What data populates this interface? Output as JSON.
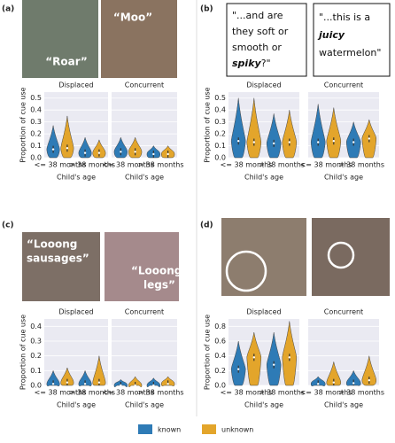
{
  "panels": [
    {
      "label": "(a)",
      "quotes": [
        "“Roar”",
        "“Moo”"
      ]
    },
    {
      "label": "(b)",
      "quotes": [
        [
          "\"...and are",
          "they soft or",
          "smooth or",
          "spiky",
          "?\""
        ],
        [
          "\"...this is a",
          "juicy",
          "watermelon\""
        ]
      ]
    },
    {
      "label": "(c)",
      "quotes": [
        [
          "“Looong",
          "sausages”"
        ],
        [
          "“Looong",
          "legs”"
        ]
      ]
    },
    {
      "label": "(d)"
    }
  ],
  "chart_data": [
    {
      "type": "violin",
      "title": "Displaced",
      "ylabel": "Proportion of cue use",
      "xlabel": "Child's age",
      "categories": [
        "<= 38 months",
        "> 38 months"
      ],
      "series": [
        {
          "name": "known",
          "color": "#2e7bb6",
          "values": [
            0.07,
            0.04
          ],
          "max": [
            0.27,
            0.17
          ]
        },
        {
          "name": "unknown",
          "color": "#e3a52b",
          "values": [
            0.08,
            0.04
          ],
          "max": [
            0.35,
            0.15
          ]
        }
      ],
      "ylim": [
        0,
        0.55
      ],
      "yticks": [
        {
          "value": 0,
          "label": "0.0"
        },
        0.1,
        0.2,
        0.3,
        0.4,
        0.5
      ]
    },
    {
      "type": "violin",
      "title": "Concurrent",
      "xlabel": "Child's age",
      "categories": [
        "<= 38 months",
        "> 38 months"
      ],
      "series": [
        {
          "name": "known",
          "color": "#2e7bb6",
          "values": [
            0.05,
            0.03
          ],
          "max": [
            0.17,
            0.1
          ]
        },
        {
          "name": "unknown",
          "color": "#e3a52b",
          "values": [
            0.05,
            0.03
          ],
          "max": [
            0.17,
            0.1
          ]
        }
      ],
      "ylim": [
        0,
        0.55
      ]
    },
    {
      "type": "violin",
      "title": "Displaced",
      "ylabel": "Proportion of cue use",
      "xlabel": "Child's age",
      "categories": [
        "<= 38 months",
        "> 38 months"
      ],
      "series": [
        {
          "name": "known",
          "color": "#2e7bb6",
          "values": [
            0.14,
            0.12
          ],
          "max": [
            0.5,
            0.37
          ]
        },
        {
          "name": "unknown",
          "color": "#e3a52b",
          "values": [
            0.13,
            0.13
          ],
          "max": [
            0.5,
            0.4
          ]
        }
      ],
      "ylim": [
        0,
        0.55
      ],
      "yticks": [
        {
          "value": 0,
          "label": "0.0"
        },
        0.1,
        0.2,
        0.3,
        0.4,
        0.5
      ]
    },
    {
      "type": "violin",
      "title": "Concurrent",
      "xlabel": "Child's age",
      "categories": [
        "<= 38 months",
        "> 38 months"
      ],
      "series": [
        {
          "name": "known",
          "color": "#2e7bb6",
          "values": [
            0.13,
            0.13
          ],
          "max": [
            0.45,
            0.3
          ]
        },
        {
          "name": "unknown",
          "color": "#e3a52b",
          "values": [
            0.14,
            0.16
          ],
          "max": [
            0.42,
            0.32
          ]
        }
      ],
      "ylim": [
        0,
        0.55
      ]
    },
    {
      "type": "violin",
      "title": "Displaced",
      "ylabel": "Proportion of cue use",
      "xlabel": "Child's age",
      "categories": [
        "<= 38 months",
        "> 38 months"
      ],
      "series": [
        {
          "name": "known",
          "color": "#2e7bb6",
          "values": [
            0.01,
            0.01
          ],
          "max": [
            0.1,
            0.1
          ]
        },
        {
          "name": "unknown",
          "color": "#e3a52b",
          "values": [
            0.02,
            0.02
          ],
          "max": [
            0.12,
            0.2
          ]
        }
      ],
      "ylim": [
        0,
        0.45
      ],
      "yticks": [
        {
          "value": 0,
          "label": "0.0"
        },
        0.1,
        0.2,
        0.3,
        0.4
      ]
    },
    {
      "type": "violin",
      "title": "Concurrent",
      "xlabel": "Child's age",
      "categories": [
        "<= 38 months",
        "> 38 months"
      ],
      "series": [
        {
          "name": "known",
          "color": "#2e7bb6",
          "values": [
            0,
            0
          ],
          "max": [
            0.04,
            0.05
          ]
        },
        {
          "name": "unknown",
          "color": "#e3a52b",
          "values": [
            0,
            0.01
          ],
          "max": [
            0.06,
            0.06
          ]
        }
      ],
      "ylim": [
        0,
        0.45
      ]
    },
    {
      "type": "violin",
      "title": "Displaced",
      "ylabel": "Proportion of cue use",
      "xlabel": "Child's age",
      "categories": [
        "<= 38 months",
        "> 38 months"
      ],
      "series": [
        {
          "name": "known",
          "color": "#2e7bb6",
          "values": [
            0.22,
            0.28
          ],
          "max": [
            0.6,
            0.72
          ]
        },
        {
          "name": "unknown",
          "color": "#e3a52b",
          "values": [
            0.38,
            0.38
          ],
          "max": [
            0.72,
            0.87
          ]
        }
      ],
      "ylim": [
        0,
        0.9
      ],
      "yticks": [
        {
          "value": 0,
          "label": "0.0"
        },
        0.2,
        0.4,
        0.6,
        0.8
      ]
    },
    {
      "type": "violin",
      "title": "Concurrent",
      "xlabel": "Child's age",
      "categories": [
        "<= 38 months",
        "> 38 months"
      ],
      "series": [
        {
          "name": "known",
          "color": "#2e7bb6",
          "values": [
            0.02,
            0.03
          ],
          "max": [
            0.12,
            0.2
          ]
        },
        {
          "name": "unknown",
          "color": "#e3a52b",
          "values": [
            0.04,
            0.07
          ],
          "max": [
            0.32,
            0.4
          ]
        }
      ],
      "ylim": [
        0,
        0.9
      ]
    }
  ]
}
